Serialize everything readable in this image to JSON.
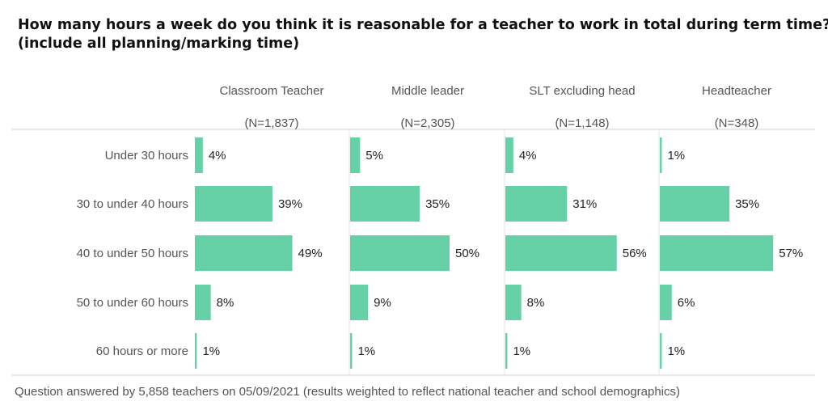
{
  "chart_data": {
    "type": "bar",
    "orientation": "horizontal",
    "title_lines": [
      "How many hours a week do you think it is reasonable for a teacher to work in total during term time?",
      "(include all planning/marking time)"
    ],
    "categories": [
      "Under 30 hours",
      "30 to under 40 hours",
      "40 to under 50 hours",
      "50 to under 60 hours",
      "60 hours or more"
    ],
    "series": [
      {
        "name": "Classroom Teacher",
        "n_label": "(N=1,837)",
        "values": [
          4,
          39,
          49,
          8,
          1
        ],
        "labels": [
          "4%",
          "39%",
          "49%",
          "8%",
          "1%"
        ]
      },
      {
        "name": "Middle leader",
        "n_label": "(N=2,305)",
        "values": [
          5,
          35,
          50,
          9,
          1
        ],
        "labels": [
          "5%",
          "35%",
          "50%",
          "9%",
          "1%"
        ]
      },
      {
        "name": "SLT excluding head",
        "n_label": "(N=1,148)",
        "values": [
          4,
          31,
          56,
          8,
          1
        ],
        "labels": [
          "4%",
          "31%",
          "56%",
          "8%",
          "1%"
        ]
      },
      {
        "name": "Headteacher",
        "n_label": "(N=348)",
        "values": [
          1,
          35,
          57,
          6,
          1
        ],
        "labels": [
          "1%",
          "35%",
          "57%",
          "6%",
          "1%"
        ]
      }
    ],
    "value_unit": "%",
    "xlim": [
      0,
      100
    ],
    "bar_color": "#66d1a7",
    "grid": false,
    "footnote": "Question answered by 5,858 teachers on 05/09/2021 (results weighted to reflect national teacher and school demographics)"
  }
}
